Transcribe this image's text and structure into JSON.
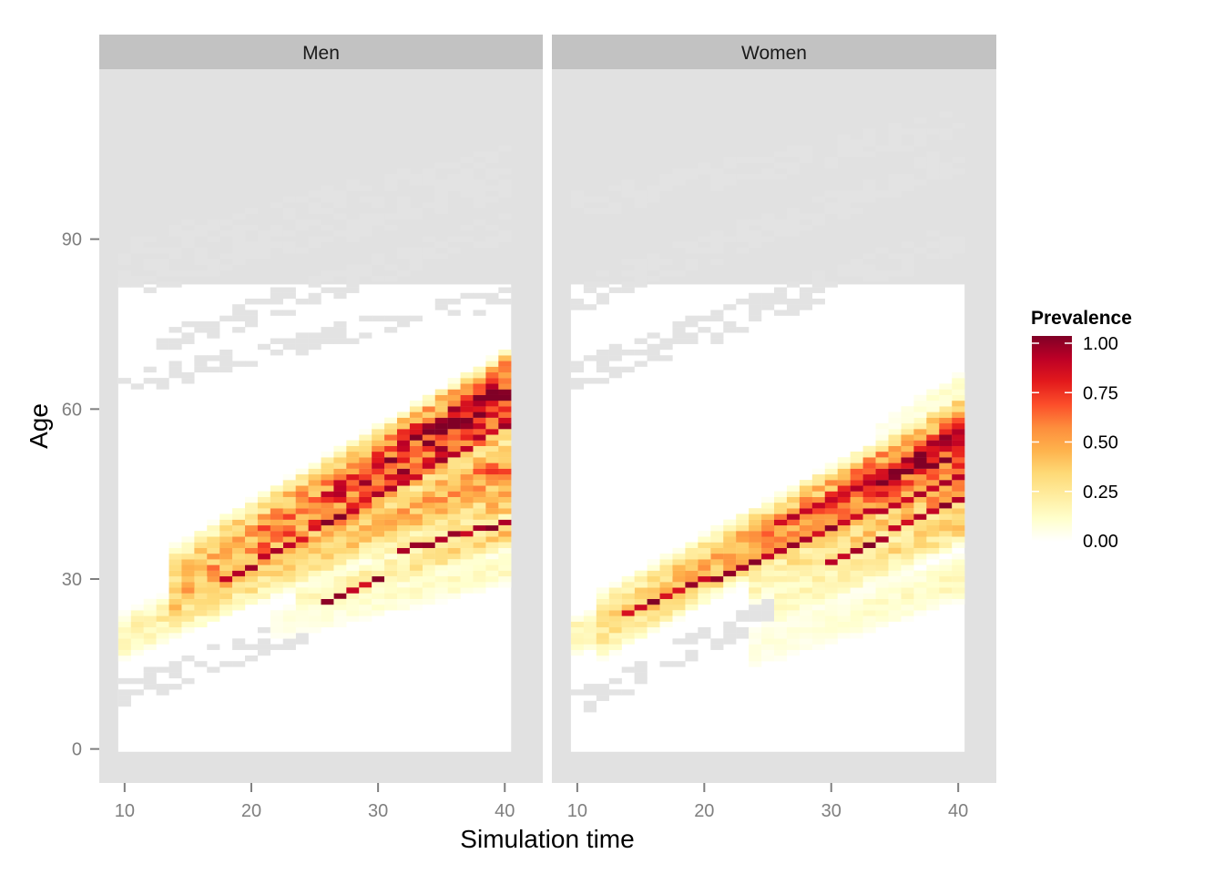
{
  "chart_data": {
    "type": "heatmap",
    "xlabel": "Simulation time",
    "ylabel": "Age",
    "facets": [
      {
        "name": "Men",
        "bands": [
          {
            "x": [
              10,
              40
            ],
            "y": [
              20,
              48
            ],
            "width": 4,
            "peak": 0.45
          },
          {
            "x": [
              14,
              40
            ],
            "y": [
              28,
              62
            ],
            "width": 8,
            "peak": 0.95
          },
          {
            "x": [
              22,
              40
            ],
            "y": [
              32,
              50
            ],
            "width": 5,
            "peak": 0.55
          },
          {
            "x": [
              30,
              40
            ],
            "y": [
              36,
              44
            ],
            "width": 4,
            "peak": 0.4
          },
          {
            "x": [
              24,
              40
            ],
            "y": [
              26,
              38
            ],
            "width": 3,
            "peak": 0.35
          },
          {
            "x": [
              22,
              40
            ],
            "y": [
              22,
              32
            ],
            "width": 3,
            "peak": 0.15
          }
        ],
        "red_streaks": [
          {
            "x": [
              18,
              40
            ],
            "y": [
              30,
              57
            ]
          },
          {
            "x": [
              32,
              40
            ],
            "y": [
              35,
              40
            ]
          },
          {
            "x": [
              26,
              30
            ],
            "y": [
              26,
              30
            ]
          }
        ],
        "missing": [
          {
            "x": [
              10,
              25
            ],
            "y": [
              10,
              22
            ],
            "width": 1.5
          },
          {
            "x": [
              10,
              40
            ],
            "y": [
              64,
              80
            ],
            "width": 1
          },
          {
            "x": [
              13,
              40
            ],
            "y": [
              72,
              92
            ],
            "width": 1.5
          },
          {
            "x": [
              10,
              40
            ],
            "y": [
              82,
              100
            ],
            "width": 2
          },
          {
            "x": [
              10,
              40
            ],
            "y": [
              88,
              104
            ],
            "width": 1.5
          },
          {
            "x": [
              26,
              40
            ],
            "y": [
              28,
              36
            ],
            "width": 1
          }
        ]
      },
      {
        "name": "Women",
        "bands": [
          {
            "x": [
              10,
              40
            ],
            "y": [
              20,
              50
            ],
            "width": 3,
            "peak": 0.55
          },
          {
            "x": [
              12,
              40
            ],
            "y": [
              22,
              56
            ],
            "width": 6,
            "peak": 0.7
          },
          {
            "x": [
              22,
              40
            ],
            "y": [
              34,
              54
            ],
            "width": 5,
            "peak": 0.95
          },
          {
            "x": [
              24,
              40
            ],
            "y": [
              30,
              46
            ],
            "width": 4,
            "peak": 0.5
          },
          {
            "x": [
              26,
              40
            ],
            "y": [
              26,
              40
            ],
            "width": 4,
            "peak": 0.35
          },
          {
            "x": [
              24,
              40
            ],
            "y": [
              18,
              30
            ],
            "width": 4,
            "peak": 0.15
          },
          {
            "x": [
              34,
              40
            ],
            "y": [
              56,
              64
            ],
            "width": 2,
            "peak": 0.12
          }
        ],
        "red_streaks": [
          {
            "x": [
              14,
              40
            ],
            "y": [
              24,
              48
            ]
          },
          {
            "x": [
              26,
              40
            ],
            "y": [
              40,
              54
            ]
          },
          {
            "x": [
              30,
              40
            ],
            "y": [
              33,
              44
            ]
          }
        ],
        "missing": [
          {
            "x": [
              10,
              30
            ],
            "y": [
              8,
              30
            ],
            "width": 1.5
          },
          {
            "x": [
              10,
              40
            ],
            "y": [
              66,
              90
            ],
            "width": 2
          },
          {
            "x": [
              10,
              40
            ],
            "y": [
              80,
              104
            ],
            "width": 2
          },
          {
            "x": [
              10,
              40
            ],
            "y": [
              96,
              110
            ],
            "width": 1.5
          },
          {
            "x": [
              24,
              40
            ],
            "y": [
              30,
              40
            ],
            "width": 1
          }
        ]
      }
    ],
    "x_ticks": [
      10,
      20,
      30,
      40
    ],
    "y_ticks": [
      0,
      30,
      60,
      90
    ],
    "xlim": [
      8,
      43
    ],
    "ylim": [
      -6,
      120
    ],
    "legend": {
      "title": "Prevalence",
      "labels": [
        "1.00",
        "0.75",
        "0.50",
        "0.25",
        "0.00"
      ],
      "colors": [
        "#ffffff",
        "#ffffcc",
        "#ffeda0",
        "#fed976",
        "#feb24c",
        "#fd8d3c",
        "#fc4e2a",
        "#e31a1c",
        "#bd0026",
        "#800026"
      ],
      "placement": "right"
    },
    "na_color": "#e3e3e3",
    "grid": false
  }
}
